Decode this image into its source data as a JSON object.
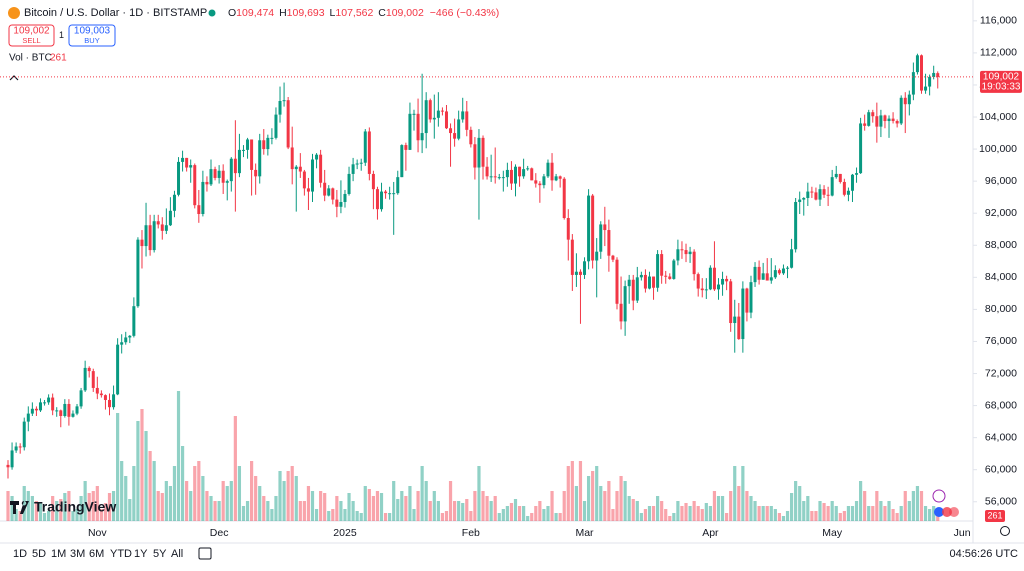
{
  "chart_data": {
    "type": "candlestick",
    "title": "Bitcoin / U.S. Dollar · 1D · BITSTAMP",
    "ohlc_legend": [
      {
        "key": "O",
        "value": "109,474"
      },
      {
        "key": "H",
        "value": "109,693"
      },
      {
        "key": "L",
        "value": "107,562"
      },
      {
        "key": "C",
        "value": "109,002"
      }
    ],
    "change": "−466 (−0.43%)",
    "sell": {
      "price": "109,002",
      "label": "SELL"
    },
    "spread": "1",
    "buy": {
      "price": "109,003",
      "label": "BUY"
    },
    "volume_title": "Vol · BTC",
    "up_color": "#089981",
    "down_color": "#f23645",
    "grid": false,
    "ylim": [
      53600,
      118600
    ],
    "yticks": [
      {
        "value": 56000,
        "label": "56,000"
      },
      {
        "value": 60000,
        "label": "60,000"
      },
      {
        "value": 64000,
        "label": "64,000"
      },
      {
        "value": 68000,
        "label": "68,000"
      },
      {
        "value": 72000,
        "label": "72,000"
      },
      {
        "value": 76000,
        "label": "76,000"
      },
      {
        "value": 80000,
        "label": "80,000"
      },
      {
        "value": 84000,
        "label": "84,000"
      },
      {
        "value": 88000,
        "label": "88,000"
      },
      {
        "value": 92000,
        "label": "92,000"
      },
      {
        "value": 96000,
        "label": "96,000"
      },
      {
        "value": 100000,
        "label": "100,000"
      },
      {
        "value": 104000,
        "label": "104,000"
      },
      {
        "value": 108000,
        "label": "108,000"
      },
      {
        "value": 112000,
        "label": "112,000"
      },
      {
        "value": 116000,
        "label": "116,000"
      }
    ],
    "last_price": {
      "value": 109002,
      "label": "109,002"
    },
    "countdown": "19:03:33",
    "next_label": "Jun",
    "categories": [
      null,
      null,
      null,
      null,
      null,
      null,
      null,
      null,
      null,
      null,
      null,
      null,
      null,
      null,
      null,
      null,
      null,
      null,
      null,
      null,
      null,
      null,
      "Nov",
      null,
      null,
      null,
      null,
      null,
      null,
      null,
      null,
      null,
      null,
      null,
      null,
      null,
      null,
      null,
      null,
      null,
      null,
      null,
      null,
      null,
      null,
      null,
      null,
      null,
      null,
      null,
      null,
      null,
      "Dec",
      null,
      null,
      null,
      null,
      null,
      null,
      null,
      null,
      null,
      null,
      null,
      null,
      null,
      null,
      null,
      null,
      null,
      null,
      null,
      null,
      null,
      null,
      null,
      null,
      null,
      null,
      null,
      null,
      null,
      null,
      "2025",
      null,
      null,
      null,
      null,
      null,
      null,
      null,
      null,
      null,
      null,
      null,
      null,
      null,
      null,
      null,
      null,
      null,
      null,
      null,
      null,
      null,
      null,
      null,
      null,
      null,
      null,
      null,
      null,
      null,
      null,
      "Feb",
      null,
      null,
      null,
      null,
      null,
      null,
      null,
      null,
      null,
      null,
      null,
      null,
      null,
      null,
      null,
      null,
      null,
      null,
      null,
      null,
      null,
      null,
      null,
      null,
      null,
      null,
      null,
      "Mar",
      null,
      null,
      null,
      null,
      null,
      null,
      null,
      null,
      null,
      null,
      null,
      null,
      null,
      null,
      null,
      null,
      null,
      null,
      null,
      null,
      null,
      null,
      null,
      null,
      null,
      null,
      null,
      null,
      null,
      null,
      "Apr",
      null,
      null,
      null,
      null,
      null,
      null,
      null,
      null,
      null,
      null,
      null,
      null,
      null,
      null,
      null,
      null,
      null,
      null,
      null,
      null,
      null,
      null,
      null,
      null,
      null,
      null,
      null,
      null,
      null,
      "May",
      null,
      null,
      null,
      null,
      null,
      null,
      null,
      null,
      null,
      null,
      null,
      null,
      null,
      null,
      null,
      null,
      null,
      null,
      null,
      null,
      null,
      null,
      null,
      null,
      null,
      null
    ],
    "open": [
      60600,
      60300,
      62400,
      62900,
      62800,
      66000,
      67000,
      67600,
      67400,
      68400,
      68400,
      69000,
      67400,
      67400,
      66700,
      68200,
      66600,
      67000,
      67900,
      69900,
      72700,
      72300,
      70200,
      69500,
      69300,
      68700,
      67800,
      69400,
      75600,
      75900,
      76500,
      76700,
      80400,
      88700,
      87900,
      90500,
      87400,
      91000,
      90600,
      89800,
      90500,
      92300,
      94300,
      98400,
      98900,
      97700,
      98000,
      93000,
      91900,
      95900,
      95600,
      97500,
      96400,
      97300,
      95800,
      96000,
      98800,
      97000,
      99900,
      99900,
      101200,
      97400,
      96600,
      101100,
      100000,
      101400,
      101400,
      104300,
      106000,
      106100,
      100200,
      97500,
      97800,
      97200,
      95100,
      94700,
      98700,
      99300,
      95800,
      94200,
      95100,
      93700,
      92800,
      93400,
      94400,
      96900,
      98100,
      98200,
      98300,
      102200,
      96900,
      95000,
      92500,
      94700,
      94500,
      94500,
      94500,
      96500,
      100500,
      99900,
      104400,
      104400,
      101100,
      102000,
      106100,
      103700,
      103900,
      104800,
      104700,
      102600,
      102000,
      101300,
      103700,
      104700,
      102400,
      100600,
      97700,
      101400,
      97800,
      96600,
      96600,
      96500,
      96500,
      96500,
      97400,
      95700,
      97800,
      96600,
      97500,
      97600,
      96100,
      95700,
      95500,
      96600,
      98300,
      96100,
      96600,
      96300,
      91400,
      88700,
      84300,
      84700,
      84300,
      86000,
      94200,
      86100,
      87200,
      90600,
      89900,
      86700,
      86200,
      80700,
      78500,
      82900,
      83700,
      81100,
      84000,
      84300,
      82600,
      84100,
      82700,
      86900,
      84200,
      84100,
      83800,
      86100,
      87500,
      87400,
      86900,
      87200,
      84400,
      82600,
      82400,
      82500,
      85200,
      82500,
      83100,
      83800,
      83500,
      78300,
      79100,
      76300,
      82600,
      79600,
      83400,
      85300,
      83700,
      84500,
      83600,
      84000,
      84900,
      84500,
      85100,
      85200,
      87500,
      93400,
      93700,
      93900,
      94700,
      94600,
      93700,
      95000,
      94300,
      94200,
      96500,
      96900,
      95900,
      94300,
      94800,
      96800,
      97000,
      103200,
      102900,
      104600,
      104100,
      102800,
      104200,
      103500,
      103800,
      103500,
      103200,
      106400,
      105600,
      106800,
      109600,
      111700,
      107300,
      107800,
      109000,
      109474
    ],
    "high": [
      61200,
      63400,
      63400,
      63300,
      66500,
      67900,
      68400,
      67900,
      68900,
      68700,
      69400,
      69500,
      67800,
      67500,
      68800,
      68800,
      67400,
      68200,
      70200,
      73600,
      72900,
      72600,
      71600,
      69900,
      69400,
      69500,
      70500,
      76400,
      76900,
      77200,
      76800,
      81500,
      89000,
      89900,
      93300,
      91800,
      91800,
      91800,
      91500,
      92600,
      94000,
      94800,
      99000,
      99800,
      98900,
      98700,
      98200,
      94900,
      97300,
      96600,
      98700,
      97800,
      98000,
      98100,
      96200,
      99000,
      103600,
      101900,
      100500,
      101400,
      101200,
      98200,
      101900,
      102500,
      101800,
      102600,
      105200,
      107800,
      108300,
      106500,
      102800,
      98000,
      99500,
      97400,
      96400,
      99400,
      99500,
      99900,
      97400,
      95500,
      95200,
      94900,
      96100,
      94900,
      97800,
      98900,
      98700,
      98800,
      102500,
      102700,
      97300,
      95300,
      95800,
      94900,
      95300,
      95900,
      97300,
      100600,
      100800,
      105800,
      104900,
      106300,
      109400,
      107100,
      106300,
      106800,
      107100,
      105200,
      105500,
      103200,
      103800,
      104800,
      106400,
      106000,
      102800,
      101500,
      102500,
      101700,
      99000,
      99300,
      100200,
      96900,
      97300,
      98300,
      98500,
      98100,
      97800,
      98800,
      97900,
      97700,
      97000,
      96000,
      96900,
      98700,
      99500,
      96900,
      96700,
      96500,
      92500,
      89400,
      87000,
      85000,
      86500,
      95000,
      94400,
      88900,
      91000,
      92800,
      91200,
      86800,
      86500,
      84100,
      83600,
      84300,
      84300,
      85300,
      84700,
      85000,
      84700,
      84100,
      87400,
      87400,
      84800,
      84500,
      86300,
      88700,
      88500,
      88200,
      87800,
      87500,
      84600,
      83900,
      83900,
      85500,
      88500,
      83900,
      84700,
      84200,
      83800,
      81200,
      80800,
      83500,
      82700,
      84200,
      85900,
      86100,
      85800,
      86400,
      86400,
      85500,
      85100,
      85600,
      85400,
      88800,
      93900,
      94700,
      94000,
      95800,
      95300,
      95200,
      95600,
      95500,
      95300,
      97400,
      97900,
      96900,
      96300,
      95200,
      96900,
      97700,
      103900,
      104300,
      104900,
      104900,
      105800,
      104900,
      104300,
      104200,
      104600,
      103700,
      106700,
      107100,
      107300,
      110800,
      111900,
      111800,
      109400,
      109300,
      110400,
      109693
    ],
    "low": [
      58900,
      60000,
      62100,
      62000,
      62400,
      64800,
      66700,
      66700,
      67200,
      68000,
      68100,
      66800,
      66600,
      65300,
      66500,
      65500,
      66500,
      66800,
      67600,
      69700,
      71500,
      69700,
      68800,
      69000,
      67500,
      66800,
      67500,
      69300,
      74500,
      75600,
      75800,
      76500,
      80200,
      85100,
      86600,
      86700,
      87100,
      90100,
      88700,
      89400,
      90400,
      91500,
      94100,
      97200,
      97200,
      95800,
      92600,
      90800,
      91600,
      94700,
      95400,
      96100,
      95700,
      94400,
      93600,
      94700,
      92200,
      96500,
      99000,
      98800,
      94200,
      94300,
      95700,
      99300,
      99200,
      100600,
      101200,
      103300,
      105300,
      100000,
      95600,
      92200,
      96400,
      94200,
      92400,
      93400,
      97600,
      95200,
      93500,
      94100,
      93100,
      91500,
      92000,
      92700,
      94200,
      96000,
      97500,
      97300,
      97900,
      96100,
      92500,
      91200,
      92200,
      93800,
      93700,
      89300,
      94300,
      96500,
      97300,
      99900,
      102300,
      99600,
      99500,
      100100,
      103300,
      101300,
      102800,
      104200,
      102500,
      97800,
      100300,
      101100,
      103300,
      101600,
      100200,
      96200,
      91200,
      96200,
      96200,
      95900,
      95700,
      96200,
      94700,
      95300,
      94900,
      94100,
      95300,
      96300,
      97300,
      96100,
      95200,
      93300,
      95100,
      96400,
      94800,
      96000,
      95200,
      91200,
      86100,
      82300,
      82800,
      78200,
      83800,
      85000,
      85100,
      81500,
      86300,
      87900,
      84700,
      85900,
      80000,
      77500,
      76700,
      80700,
      79900,
      80800,
      83600,
      82100,
      82500,
      81200,
      82200,
      83200,
      83200,
      83700,
      83700,
      85500,
      86300,
      85900,
      85800,
      83600,
      81600,
      81500,
      81300,
      82400,
      82300,
      81200,
      81700,
      82400,
      77200,
      74600,
      76200,
      74600,
      78500,
      78900,
      82800,
      83100,
      83700,
      83600,
      83200,
      83800,
      84300,
      84300,
      83900,
      85100,
      87100,
      91900,
      91700,
      92900,
      93900,
      93600,
      92900,
      93900,
      92900,
      94100,
      96300,
      95700,
      94100,
      93500,
      93400,
      95800,
      96900,
      102300,
      102800,
      103300,
      100800,
      101500,
      102600,
      101400,
      103200,
      102700,
      103000,
      102000,
      104200,
      106100,
      109300,
      106900,
      106900,
      106700,
      108700,
      107562
    ],
    "close": [
      60300,
      62400,
      62900,
      62800,
      66000,
      67000,
      67600,
      67400,
      68400,
      68400,
      69000,
      67400,
      67400,
      66700,
      68200,
      66600,
      67000,
      67900,
      69900,
      72700,
      72300,
      70200,
      69500,
      69300,
      68700,
      67800,
      69400,
      75600,
      75900,
      76500,
      76700,
      80400,
      88700,
      87900,
      90500,
      87400,
      91000,
      90600,
      89800,
      90500,
      92300,
      94300,
      98400,
      98900,
      97700,
      98000,
      93000,
      91900,
      95900,
      95600,
      97500,
      96400,
      97300,
      95800,
      96000,
      98800,
      97000,
      99900,
      99900,
      101200,
      97400,
      96600,
      101100,
      100000,
      101400,
      101400,
      104300,
      106000,
      106100,
      100200,
      97500,
      97800,
      97200,
      95100,
      94700,
      98700,
      99300,
      95800,
      94200,
      95100,
      93700,
      92800,
      93400,
      94400,
      96900,
      98100,
      98200,
      98300,
      102200,
      96900,
      95000,
      92500,
      94700,
      94500,
      94500,
      94500,
      96500,
      100500,
      99900,
      104400,
      104400,
      101100,
      102000,
      106100,
      103700,
      103900,
      104800,
      104700,
      102600,
      102000,
      101300,
      103700,
      104700,
      102400,
      100600,
      97700,
      101400,
      97800,
      96600,
      96600,
      96500,
      96500,
      96500,
      97400,
      95700,
      97800,
      96600,
      97500,
      97600,
      96100,
      95700,
      95500,
      96600,
      98300,
      96100,
      96600,
      96300,
      91400,
      88700,
      84300,
      84700,
      84300,
      86000,
      94200,
      86100,
      87200,
      90600,
      89900,
      86700,
      86200,
      80700,
      78500,
      82900,
      83700,
      81100,
      84000,
      84300,
      82600,
      84100,
      82700,
      86900,
      84200,
      84100,
      83800,
      86100,
      87500,
      87400,
      86900,
      87200,
      84400,
      82600,
      82400,
      82500,
      85200,
      82500,
      83100,
      83800,
      83500,
      78300,
      79100,
      76300,
      82600,
      79600,
      83400,
      85300,
      83700,
      84500,
      83600,
      84000,
      84900,
      84500,
      85100,
      85200,
      87500,
      93400,
      93700,
      93900,
      94700,
      94600,
      93700,
      95000,
      94300,
      94200,
      96500,
      96900,
      95900,
      94300,
      94800,
      96800,
      97000,
      103200,
      102900,
      104600,
      104100,
      102800,
      104200,
      103500,
      103800,
      103500,
      103200,
      106400,
      105600,
      106800,
      109600,
      111700,
      107300,
      107800,
      109000,
      109500,
      109002
    ],
    "volume": [
      1290,
      1075,
      516,
      430,
      1505,
      1290,
      1075,
      860,
      774,
      344,
      430,
      1075,
      860,
      946,
      1204,
      1290,
      430,
      516,
      1075,
      1720,
      1204,
      1290,
      1505,
      516,
      774,
      1204,
      1290,
      4644,
      2580,
      1935,
      946,
      2365,
      4300,
      4816,
      3870,
      3010,
      2580,
      1290,
      1204,
      1720,
      1505,
      2365,
      5590,
      3225,
      1720,
      1290,
      2365,
      2580,
      1935,
      1290,
      1075,
      860,
      860,
      1720,
      1505,
      1720,
      4515,
      2365,
      645,
      860,
      2580,
      1935,
      1505,
      1075,
      860,
      516,
      1075,
      2150,
      1720,
      2150,
      2365,
      1935,
      860,
      860,
      1505,
      1290,
      516,
      1290,
      1204,
      430,
      516,
      1075,
      860,
      516,
      1204,
      860,
      430,
      344,
      1505,
      1376,
      1075,
      1290,
      1204,
      344,
      344,
      1720,
      946,
      1290,
      1075,
      1505,
      516,
      1290,
      2365,
      1720,
      860,
      1290,
      860,
      344,
      430,
      1720,
      860,
      860,
      774,
      946,
      430,
      1290,
      2365,
      1290,
      1075,
      860,
      1075,
      344,
      516,
      645,
      774,
      946,
      645,
      645,
      215,
      344,
      645,
      860,
      516,
      645,
      1290,
      344,
      344,
      1290,
      2365,
      2580,
      1505,
      2580,
      860,
      1935,
      2150,
      2365,
      1505,
      1290,
      1720,
      516,
      1290,
      1935,
      1720,
      1075,
      946,
      860,
      344,
      516,
      645,
      645,
      1075,
      860,
      516,
      215,
      344,
      860,
      645,
      774,
      645,
      860,
      645,
      516,
      774,
      645,
      1290,
      1075,
      1075,
      344,
      1290,
      2365,
      1505,
      2365,
      1290,
      1075,
      860,
      645,
      645,
      645,
      645,
      516,
      344,
      215,
      430,
      1204,
      1720,
      1505,
      860,
      1075,
      430,
      430,
      860,
      774,
      645,
      860,
      645,
      344,
      430,
      645,
      645,
      860,
      1720,
      1290,
      645,
      645,
      1290,
      860,
      645,
      860,
      516,
      344,
      645,
      1290,
      860,
      1290,
      1505,
      1290,
      645,
      516,
      645,
      261
    ]
  },
  "ui": {
    "logo": "TradingView",
    "timeframes": [
      "1D",
      "5D",
      "1M",
      "3M",
      "6M",
      "YTD",
      "1Y",
      "5Y",
      "All"
    ],
    "clock": "04:56:26 UTC"
  }
}
